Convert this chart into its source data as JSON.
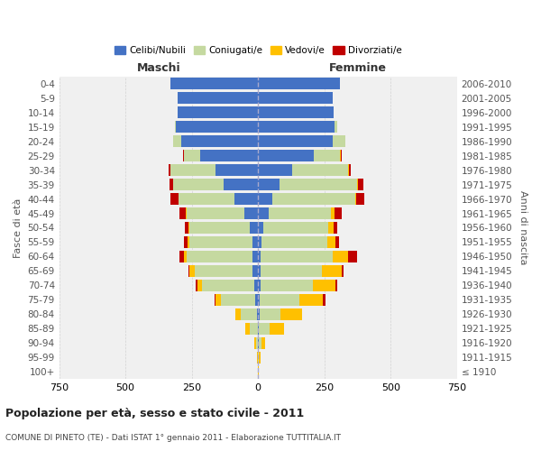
{
  "age_groups": [
    "100+",
    "95-99",
    "90-94",
    "85-89",
    "80-84",
    "75-79",
    "70-74",
    "65-69",
    "60-64",
    "55-59",
    "50-54",
    "45-49",
    "40-44",
    "35-39",
    "30-34",
    "25-29",
    "20-24",
    "15-19",
    "10-14",
    "5-9",
    "0-4"
  ],
  "birth_years": [
    "≤ 1910",
    "1911-1915",
    "1916-1920",
    "1921-1925",
    "1926-1930",
    "1931-1935",
    "1936-1940",
    "1941-1945",
    "1946-1950",
    "1951-1955",
    "1956-1960",
    "1961-1965",
    "1966-1970",
    "1971-1975",
    "1976-1980",
    "1981-1985",
    "1986-1990",
    "1991-1995",
    "1996-2000",
    "2001-2005",
    "2006-2010"
  ],
  "male": {
    "celibe": [
      0,
      0,
      0,
      2,
      5,
      10,
      15,
      20,
      20,
      20,
      30,
      50,
      90,
      130,
      160,
      220,
      290,
      310,
      305,
      305,
      330
    ],
    "coniugato": [
      0,
      2,
      8,
      30,
      60,
      130,
      195,
      220,
      250,
      240,
      230,
      220,
      210,
      190,
      170,
      60,
      30,
      5,
      0,
      0,
      0
    ],
    "vedovo": [
      0,
      2,
      5,
      15,
      20,
      20,
      20,
      18,
      10,
      5,
      3,
      2,
      0,
      0,
      0,
      0,
      0,
      0,
      0,
      0,
      0
    ],
    "divorziato": [
      0,
      0,
      0,
      0,
      0,
      5,
      5,
      5,
      15,
      15,
      12,
      25,
      30,
      15,
      8,
      3,
      2,
      0,
      0,
      0,
      0
    ]
  },
  "female": {
    "nubile": [
      0,
      0,
      2,
      3,
      5,
      5,
      8,
      10,
      10,
      12,
      20,
      40,
      55,
      80,
      130,
      210,
      280,
      290,
      285,
      280,
      310
    ],
    "coniugata": [
      0,
      3,
      10,
      40,
      80,
      150,
      200,
      230,
      270,
      250,
      245,
      235,
      310,
      295,
      210,
      100,
      50,
      10,
      0,
      0,
      0
    ],
    "vedova": [
      2,
      5,
      15,
      55,
      80,
      90,
      85,
      75,
      60,
      30,
      20,
      15,
      5,
      3,
      2,
      2,
      0,
      0,
      0,
      0,
      0
    ],
    "divorziata": [
      0,
      0,
      0,
      0,
      2,
      8,
      5,
      8,
      35,
      15,
      15,
      25,
      30,
      20,
      8,
      2,
      0,
      0,
      0,
      0,
      0
    ]
  },
  "colors": {
    "celibe": "#4472C4",
    "coniugato": "#c5d9a0",
    "vedovo": "#ffc000",
    "divorziato": "#c00000"
  },
  "xlim": 750,
  "title": "Popolazione per età, sesso e stato civile - 2011",
  "subtitle": "COMUNE DI PINETO (TE) - Dati ISTAT 1° gennaio 2011 - Elaborazione TUTTITALIA.IT",
  "xlabel_left": "Maschi",
  "xlabel_right": "Femmine",
  "ylabel_left": "Fasce di età",
  "ylabel_right": "Anni di nascita",
  "bg_color": "#f0f0f0",
  "grid_color": "#cccccc"
}
